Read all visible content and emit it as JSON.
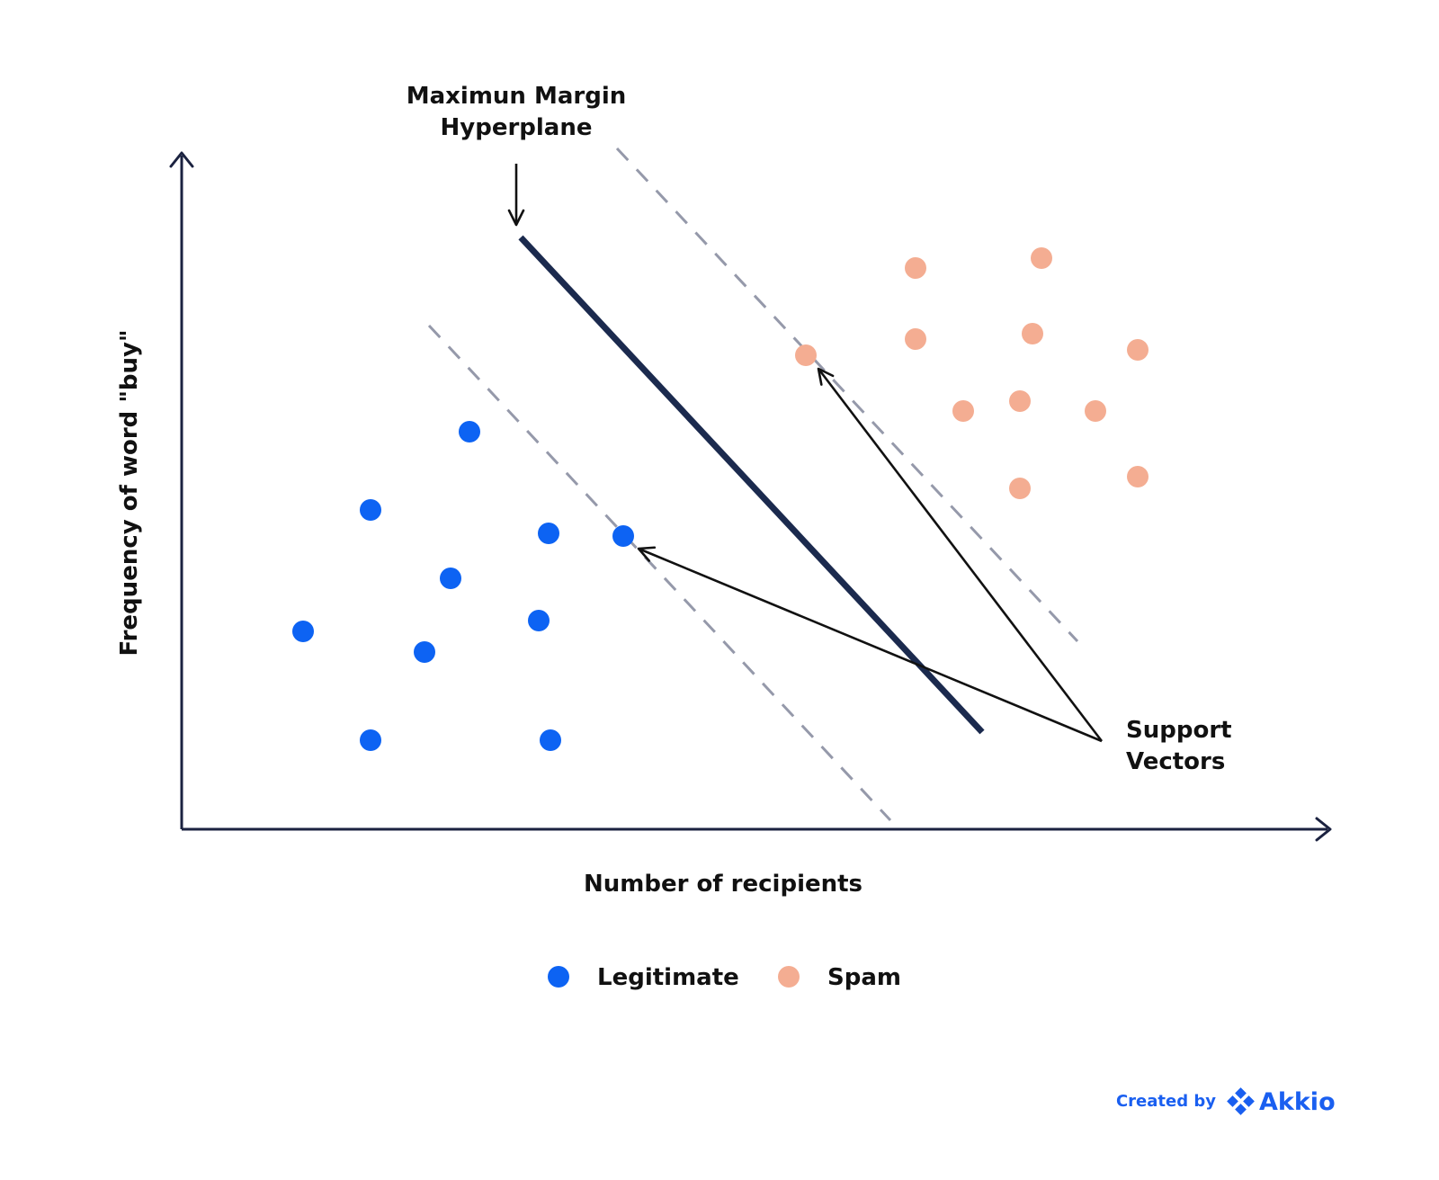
{
  "annotations": {
    "hyperplane_line1": "Maximun Margin",
    "hyperplane_line2": "Hyperplane",
    "support_line1": "Support",
    "support_line2": "Vectors"
  },
  "axes": {
    "xlabel": "Number of recipients",
    "ylabel": "Frequency of word \"buy\""
  },
  "legend": {
    "legitimate": "Legitimate",
    "spam": "Spam"
  },
  "credit": {
    "prefix": "Created by",
    "brand": "Akkio"
  },
  "colors": {
    "legitimate": "#0d63f3",
    "spam": "#f4ad92",
    "axis": "#1b2240",
    "hyperplane": "#1b2a4e",
    "margin": "#9599aa",
    "arrow": "#111111",
    "brand": "#1a5ff0"
  },
  "icons": {
    "credit_logo": "akkio-diamond-icon"
  }
}
